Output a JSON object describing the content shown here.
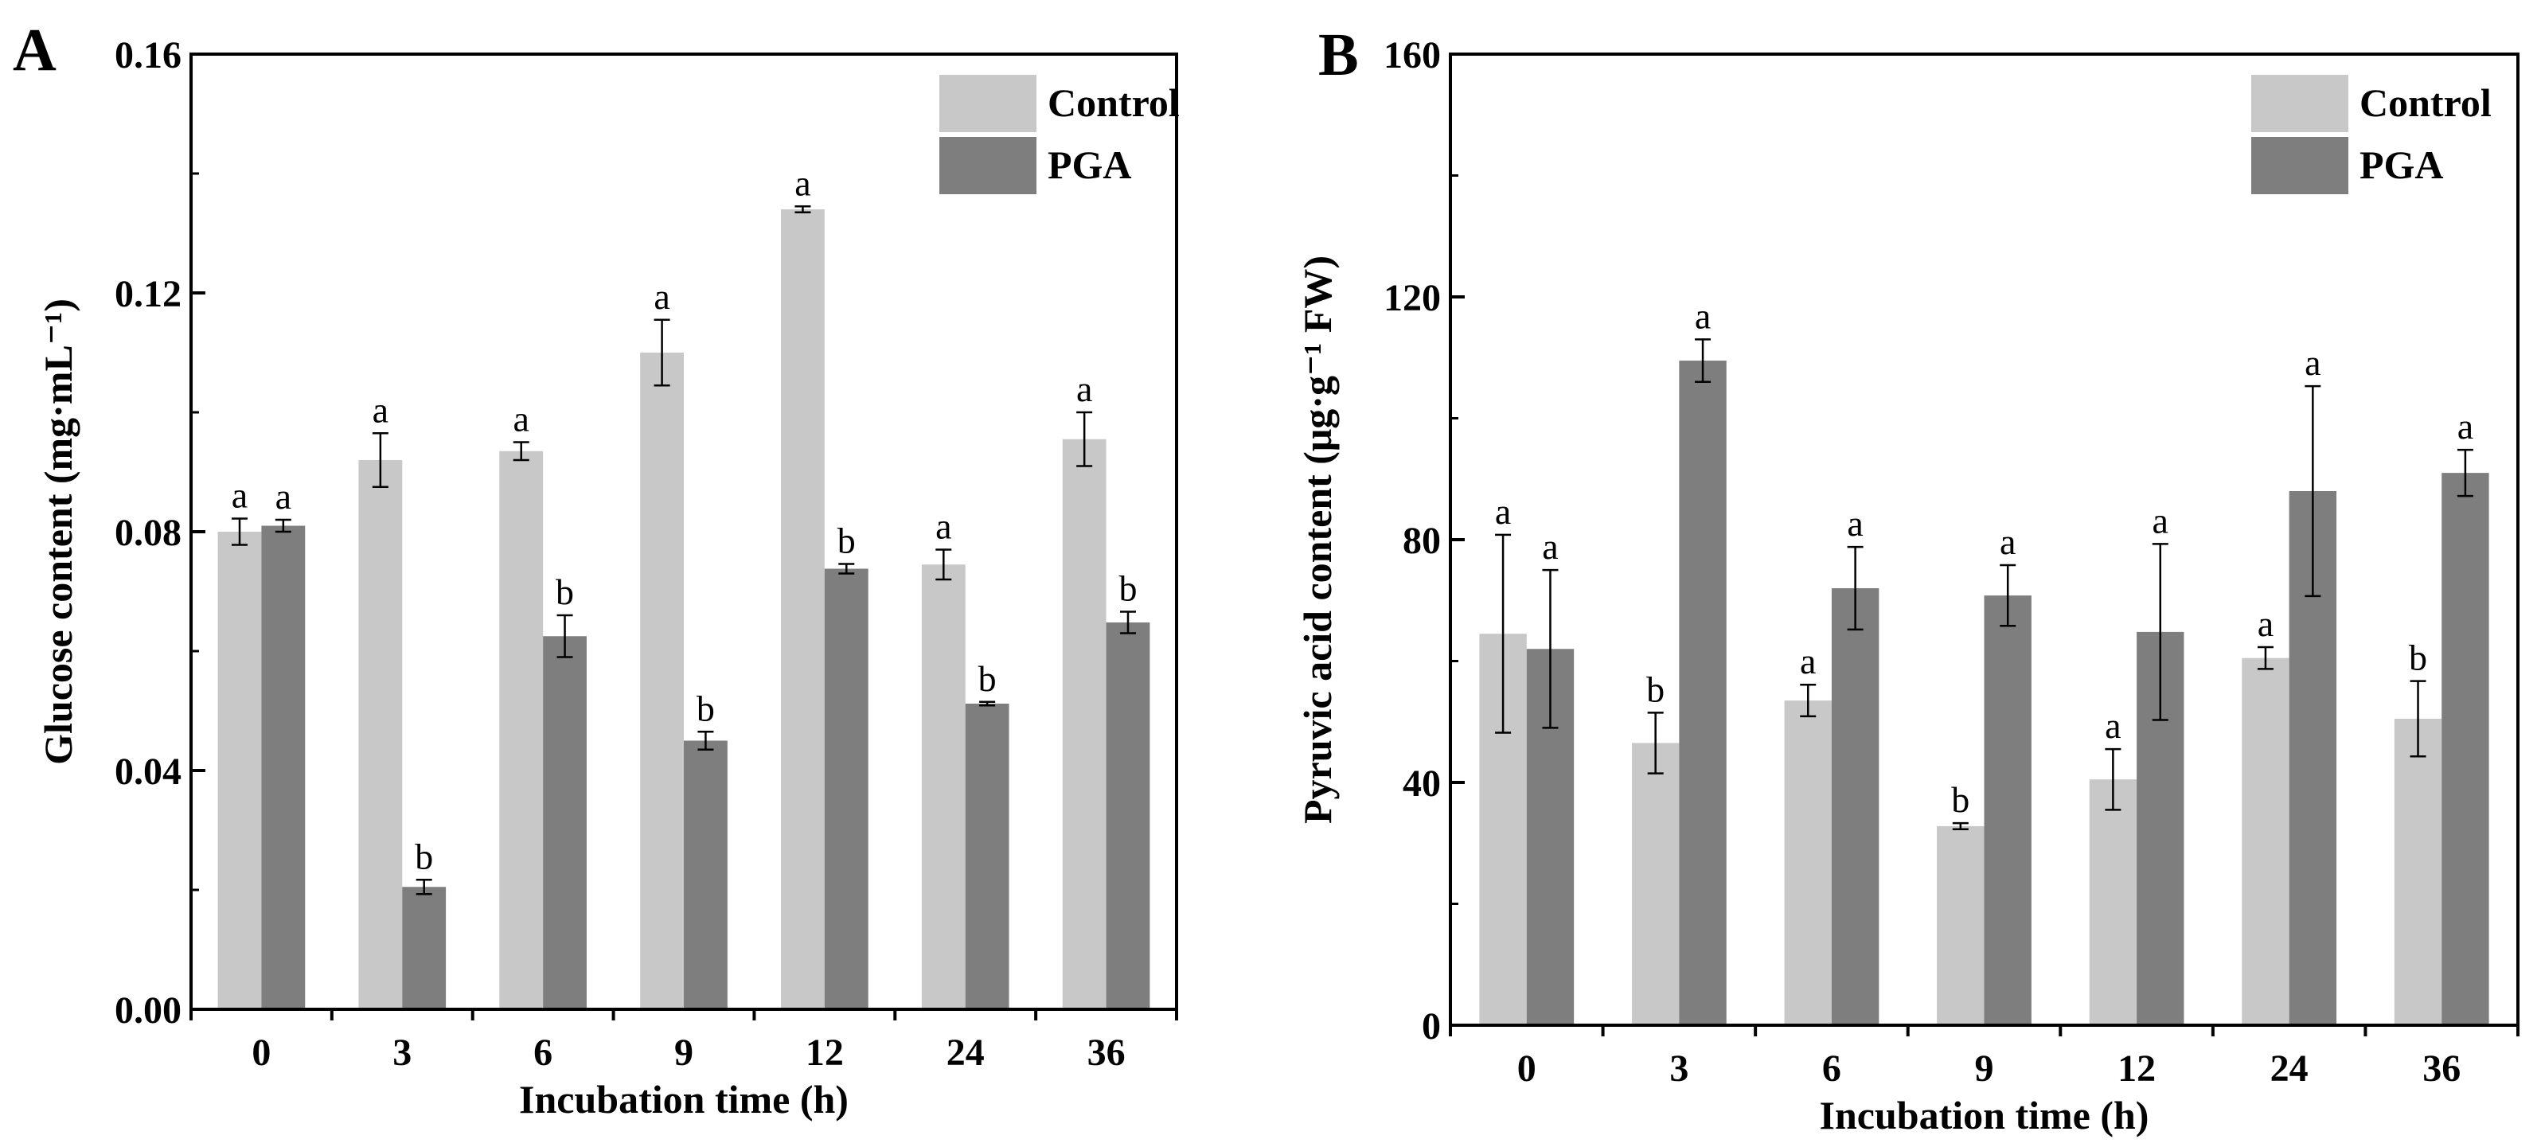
{
  "chart_data": [
    {
      "panel": "A",
      "type": "bar",
      "categories": [
        "0",
        "3",
        "6",
        "9",
        "12",
        "24",
        "36"
      ],
      "xlabel": "Incubation time (h)",
      "ylabel": "Glucose content (mg·mL⁻¹)",
      "ylim": [
        0,
        0.16
      ],
      "yticks": [
        "0.00",
        "0.04",
        "0.08",
        "0.12",
        "0.16"
      ],
      "ytick_values": [
        0,
        0.04,
        0.08,
        0.12,
        0.16
      ],
      "legend": "top-right",
      "grid": false,
      "series": [
        {
          "name": "Control",
          "color": "#c8c8c8",
          "values": [
            0.08,
            0.092,
            0.0935,
            0.11,
            0.134,
            0.0745,
            0.0955
          ],
          "errors": [
            0.0022,
            0.0045,
            0.0015,
            0.0055,
            0.0005,
            0.0025,
            0.0045
          ],
          "labels": [
            "a",
            "a",
            "a",
            "a",
            "a",
            "a",
            "a"
          ]
        },
        {
          "name": "PGA",
          "color": "#7e7e7e",
          "values": [
            0.081,
            0.0205,
            0.0625,
            0.045,
            0.0738,
            0.0512,
            0.0648
          ],
          "errors": [
            0.001,
            0.0012,
            0.0035,
            0.0015,
            0.0008,
            0.0003,
            0.0018
          ],
          "labels": [
            "a",
            "b",
            "b",
            "b",
            "b",
            "b",
            "b"
          ]
        }
      ]
    },
    {
      "panel": "B",
      "type": "bar",
      "categories": [
        "0",
        "3",
        "6",
        "9",
        "12",
        "24",
        "36"
      ],
      "xlabel": "Incubation time (h)",
      "ylabel": "Pyruvic acid content (μg·g⁻¹ FW)",
      "ylim": [
        0,
        160
      ],
      "yticks": [
        "0",
        "40",
        "80",
        "120",
        "160"
      ],
      "ytick_values": [
        0,
        40,
        80,
        120,
        160
      ],
      "legend": "top-right",
      "grid": false,
      "series": [
        {
          "name": "Control",
          "color": "#c8c8c8",
          "values": [
            64.5,
            46.5,
            53.5,
            32.8,
            40.5,
            60.5,
            50.5
          ],
          "errors": [
            16.3,
            5.0,
            2.6,
            0.5,
            5.0,
            1.8,
            6.2
          ],
          "labels": [
            "a",
            "b",
            "a",
            "b",
            "a",
            "a",
            "b"
          ]
        },
        {
          "name": "PGA",
          "color": "#7e7e7e",
          "values": [
            62.0,
            109.5,
            72.0,
            70.8,
            64.8,
            88.0,
            91.0
          ],
          "errors": [
            13.0,
            3.5,
            6.8,
            5.0,
            14.5,
            17.3,
            3.8
          ],
          "labels": [
            "a",
            "a",
            "a",
            "a",
            "a",
            "a",
            "a"
          ]
        }
      ]
    }
  ]
}
